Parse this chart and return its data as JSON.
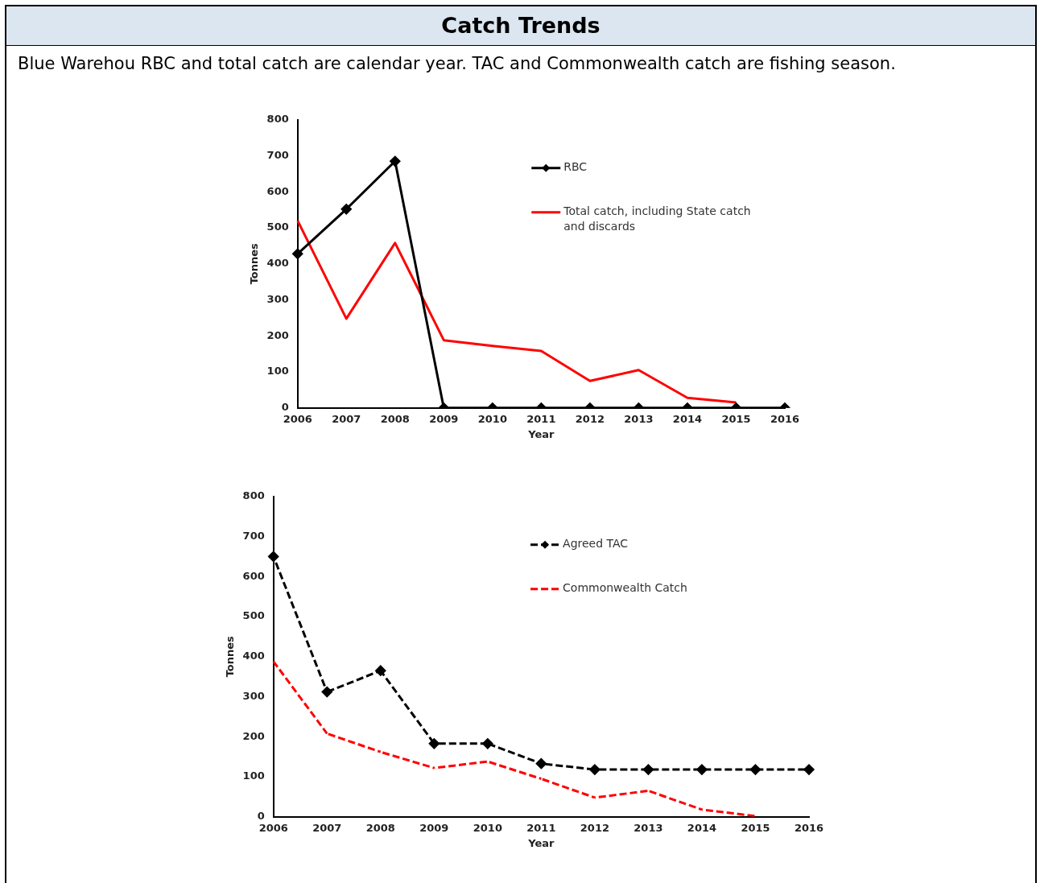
{
  "chart_data": [
    {
      "type": "line",
      "title": "Catch Trends",
      "subtitle": "Blue Warehou RBC and total catch are calendar year. TAC and Commonwealth catch are fishing season.",
      "xlabel": "Year",
      "ylabel": "Tonnes",
      "categories": [
        "2006",
        "2007",
        "2008",
        "2009",
        "2010",
        "2011",
        "2012",
        "2013",
        "2014",
        "2015",
        "2016"
      ],
      "series": [
        {
          "name": "RBC",
          "color": "#000000",
          "marker": "diamond",
          "line_style": "solid",
          "values": [
            428,
            552,
            685,
            0,
            0,
            0,
            0,
            0,
            0,
            0,
            0
          ]
        },
        {
          "name": "Total catch, including State catch and discards",
          "color": "#ff0000",
          "marker": "none",
          "line_style": "solid",
          "values": [
            520,
            248,
            458,
            188,
            172,
            158,
            75,
            105,
            28,
            15,
            null
          ]
        }
      ],
      "ylim": [
        0,
        800
      ],
      "yticks": [
        0,
        100,
        200,
        300,
        400,
        500,
        600,
        700,
        800
      ],
      "grid": false,
      "legend": "top right"
    },
    {
      "type": "line",
      "xlabel": "Year",
      "ylabel": "Tonnes",
      "categories": [
        "2006",
        "2007",
        "2008",
        "2009",
        "2010",
        "2011",
        "2012",
        "2013",
        "2014",
        "2015",
        "2016"
      ],
      "series": [
        {
          "name": "Agreed TAC",
          "color": "#000000",
          "marker": "diamond",
          "line_style": "dashed",
          "values": [
            650,
            312,
            365,
            183,
            183,
            133,
            118,
            118,
            118,
            118,
            118
          ]
        },
        {
          "name": "Commonwealth Catch",
          "color": "#ff0000",
          "marker": "none",
          "line_style": "dashed",
          "values": [
            388,
            208,
            162,
            122,
            138,
            95,
            48,
            65,
            18,
            2,
            null
          ]
        }
      ],
      "ylim": [
        0,
        800
      ],
      "yticks": [
        0,
        100,
        200,
        300,
        400,
        500,
        600,
        700,
        800
      ],
      "grid": false,
      "legend": "top right"
    }
  ]
}
